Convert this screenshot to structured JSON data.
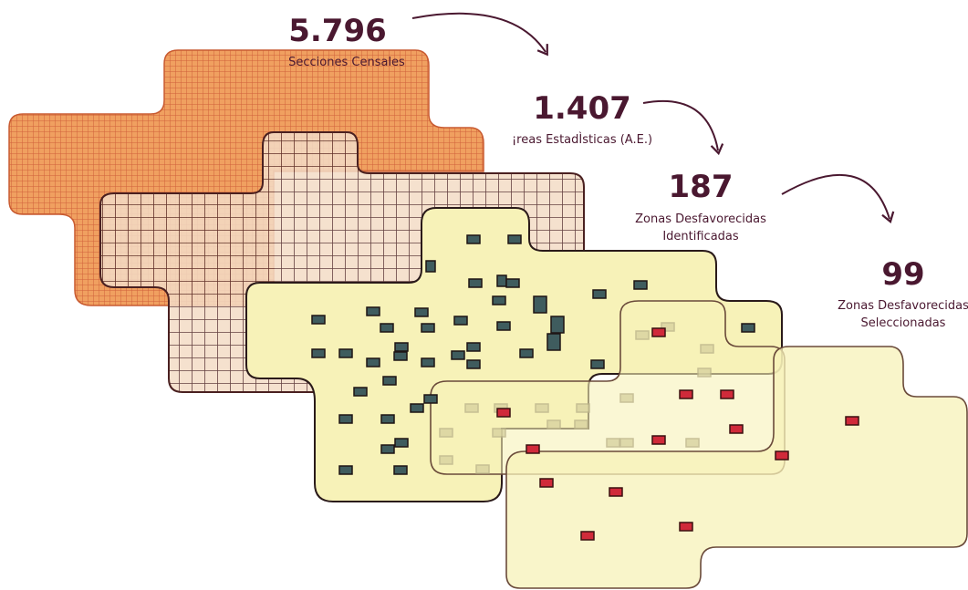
{
  "stages": [
    {
      "number": "5.796",
      "label_lines": [
        "Secciones Censales"
      ]
    },
    {
      "number": "1.407",
      "label_lines": [
        "¡reas EstadÌsticas (A.E.)"
      ]
    },
    {
      "number": "187",
      "label_lines": [
        "Zonas Desfavorecidas",
        "Identificadas"
      ]
    },
    {
      "number": "99",
      "label_lines": [
        "Zonas Desfavorecidas",
        "Seleccionadas"
      ]
    }
  ]
}
